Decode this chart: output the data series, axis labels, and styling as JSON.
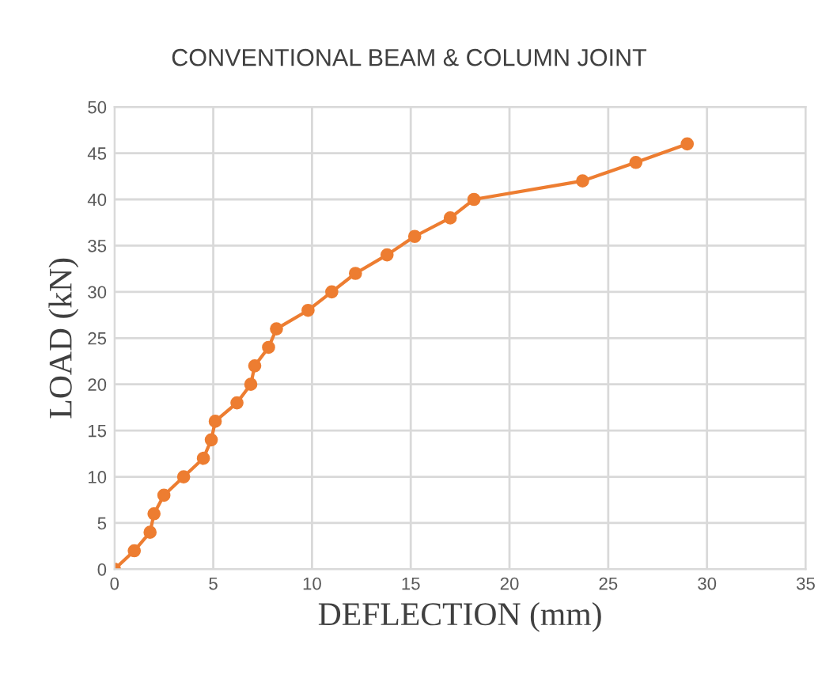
{
  "chart_data": {
    "type": "line",
    "title": "CONVENTIONAL BEAM & COLUMN JOINT",
    "xlabel": "DEFLECTION (mm)",
    "ylabel": "LOAD (kN)",
    "series": [
      {
        "color": "#ed7d31",
        "x": [
          0,
          1,
          1.8,
          2,
          2.5,
          3.5,
          4.5,
          4.9,
          5.1,
          6.2,
          6.9,
          7.1,
          7.8,
          8.2,
          9.8,
          11,
          12.2,
          13.8,
          15.2,
          17,
          18.2,
          23.7,
          26.4,
          29
        ],
        "values": [
          0,
          2,
          4,
          6,
          8,
          10,
          12,
          14,
          16,
          18,
          20,
          22,
          24,
          26,
          28,
          30,
          32,
          34,
          36,
          38,
          40,
          42,
          44,
          46
        ]
      }
    ],
    "xlim": [
      0,
      35
    ],
    "xticks": [
      0,
      5,
      10,
      15,
      20,
      25,
      30,
      35
    ],
    "ylim": [
      0,
      50
    ],
    "yticks": [
      0,
      5,
      10,
      15,
      20,
      25,
      30,
      35,
      40,
      45,
      50
    ],
    "grid": true,
    "marker": "circle",
    "line_style": "solid"
  }
}
